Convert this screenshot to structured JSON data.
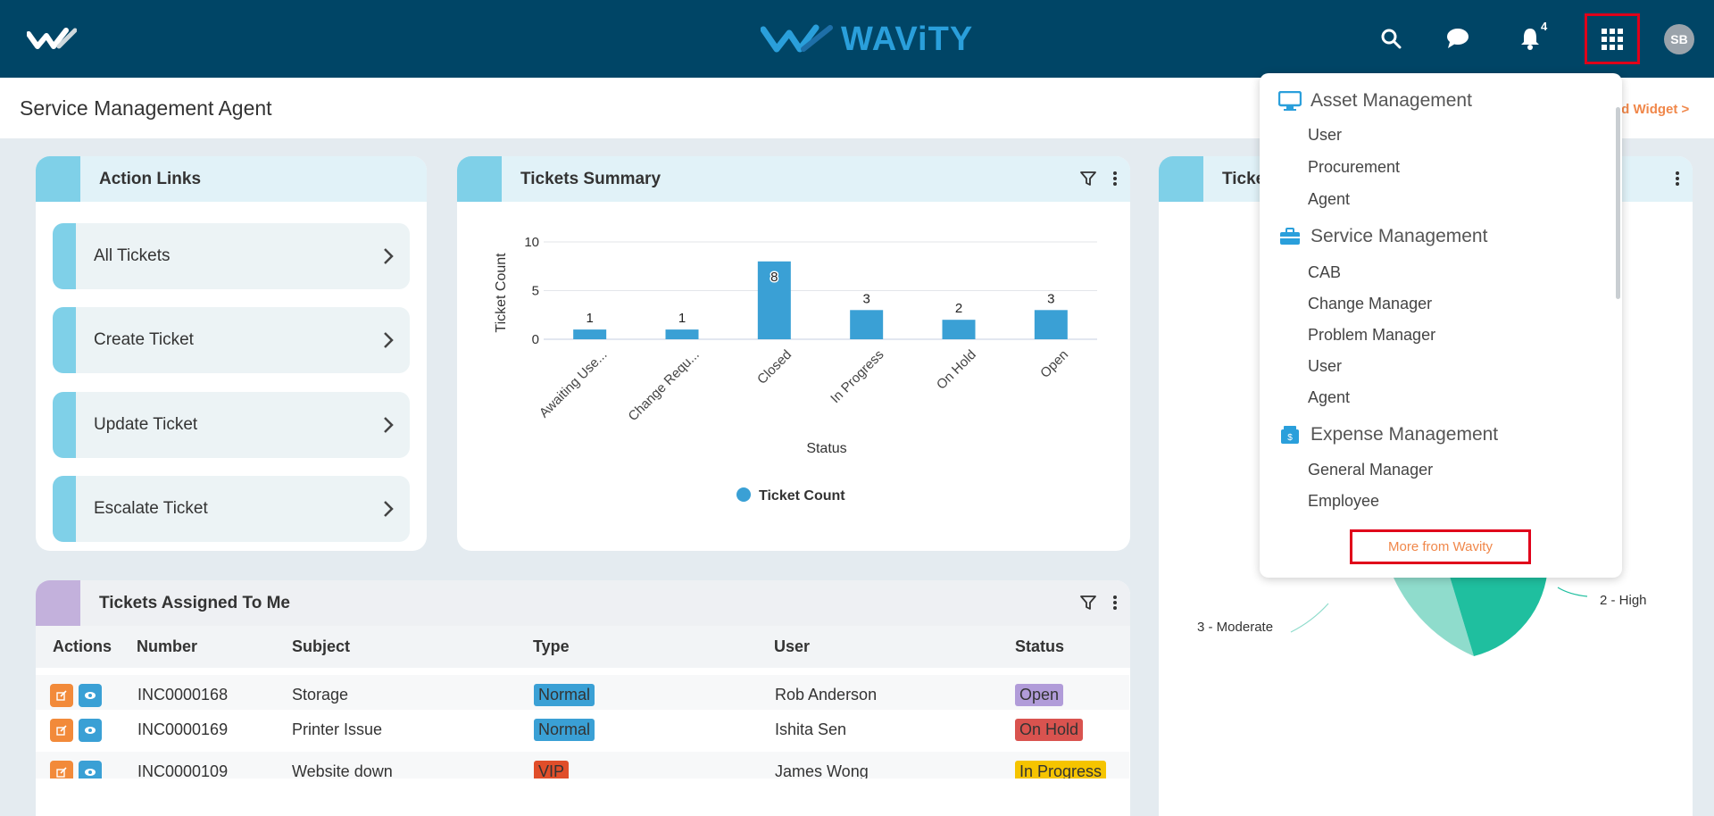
{
  "header": {
    "brand": "WAViTY",
    "notification_count": "4",
    "avatar_initials": "SB",
    "accent_color": "#004566"
  },
  "page": {
    "title": "Service Management Agent",
    "add_widget": "ld Widget >"
  },
  "action_links": {
    "title": "Action Links",
    "items": [
      {
        "label": "All Tickets"
      },
      {
        "label": "Create Ticket"
      },
      {
        "label": "Update Ticket"
      },
      {
        "label": "Escalate Ticket"
      }
    ]
  },
  "tickets_summary": {
    "title": "Tickets Summary"
  },
  "chart_data": [
    {
      "type": "bar",
      "categories": [
        "Awaiting Use...",
        "Change Requ...",
        "Closed",
        "In Progress",
        "On Hold",
        "Open"
      ],
      "series": [
        {
          "name": "Ticket Count",
          "values": [
            1,
            1,
            8,
            3,
            2,
            3
          ]
        }
      ],
      "xlabel": "Status",
      "ylabel": "Ticket Count",
      "yticks": [
        "0",
        "5",
        "10"
      ],
      "ylim": [
        0,
        10
      ],
      "grid": true,
      "legend": "bottom-center",
      "color": "#3aa0d5"
    },
    {
      "type": "pie",
      "slices": [
        {
          "label": "3 - Moderate",
          "color": "#8fdccc"
        },
        {
          "label": "2 - High",
          "color": "#1fbf9f"
        }
      ]
    }
  ],
  "third_widget": {
    "title_partial": "Ticke"
  },
  "assigned": {
    "title": "Tickets Assigned To Me",
    "columns": [
      "Actions",
      "Number",
      "Subject",
      "Type",
      "User",
      "Status"
    ],
    "rows": [
      {
        "number": "INC0000168",
        "subject": "Storage",
        "type": "Normal",
        "user": "Rob Anderson",
        "status": "Open",
        "status_color": "#b19cd9"
      },
      {
        "number": "INC0000169",
        "subject": "Printer Issue",
        "type": "Normal",
        "user": "Ishita Sen",
        "status": "On Hold",
        "status_color": "#d9534f"
      },
      {
        "number": "INC0000109",
        "subject": "Website down",
        "type": "VIP",
        "user": "James Wong",
        "status": "In Progress",
        "status_color": "#f5c400"
      }
    ]
  },
  "apps_menu": {
    "groups": [
      {
        "label": "Asset Management",
        "icon": "monitor-icon",
        "items": [
          "User",
          "Procurement",
          "Agent"
        ]
      },
      {
        "label": "Service Management",
        "icon": "briefcase-icon",
        "items": [
          "CAB",
          "Change Manager",
          "Problem Manager",
          "User",
          "Agent"
        ]
      },
      {
        "label": "Expense Management",
        "icon": "wallet-icon",
        "items": [
          "General Manager",
          "Employee"
        ]
      }
    ],
    "more_label": "More from Wavity"
  }
}
